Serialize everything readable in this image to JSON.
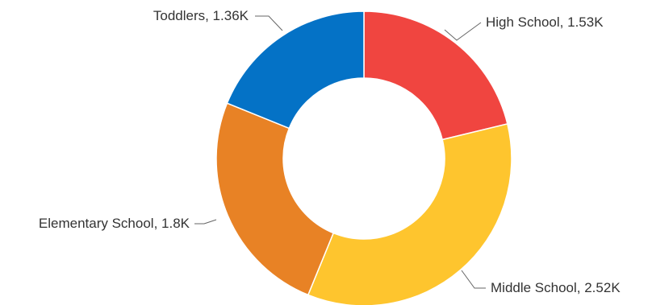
{
  "chart_data": {
    "type": "pie",
    "variant": "donut",
    "order": "clockwise from top",
    "slices": [
      {
        "label": "High School",
        "value": 1530,
        "display": "High School, 1.53K",
        "color": "#F04540"
      },
      {
        "label": "Middle School",
        "value": 2520,
        "display": "Middle School, 2.52K",
        "color": "#FEC52E"
      },
      {
        "label": "Elementary School",
        "value": 1800,
        "display": "Elementary School, 1.8K",
        "color": "#E88225"
      },
      {
        "label": "Toddlers",
        "value": 1360,
        "display": "Toddlers, 1.36K",
        "color": "#0472C6"
      }
    ]
  }
}
